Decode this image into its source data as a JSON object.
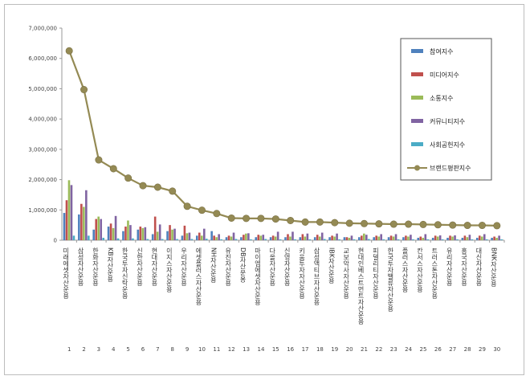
{
  "chart_data": {
    "type": "bar",
    "title": "",
    "xlabel": "",
    "ylabel": "",
    "ylim": [
      0,
      7000000
    ],
    "yticks": [
      "0",
      "1,000,000",
      "2,000,000",
      "3,000,000",
      "4,000,000",
      "5,000,000",
      "6,000,000",
      "7,000,000"
    ],
    "grid": false,
    "legend_position": "top-right",
    "categories": [
      "미래에셋자산운용",
      "삼성자산운용",
      "한화자산운용",
      "KB자산운용",
      "한국투자신탁운용",
      "신한자산운용",
      "현대자산운용",
      "이지스자산운용",
      "우리자산운용",
      "에셋플러스자산운용",
      "NH자산운용",
      "유진자산운용",
      "DB자산운용",
      "마이엠에셋자산운용",
      "다올자산운용",
      "신영자산운용",
      "키움투자자산운용",
      "삼성액티브자산운용",
      "IBK자산운용",
      "교보악사자산운용",
      "현대인베스트먼트자산운용",
      "피델리티자산운용",
      "한국투자밸류자산운용",
      "플러스자산운용",
      "칸서스자산운용",
      "트러스톤자산운용",
      "유리자산운용",
      "흥국자산운용",
      "대신자산운용",
      "BNK자산운용"
    ],
    "ranks": [
      "1",
      "2",
      "3",
      "4",
      "5",
      "6",
      "7",
      "8",
      "9",
      "10",
      "11",
      "12",
      "13",
      "14",
      "15",
      "16",
      "17",
      "18",
      "19",
      "20",
      "21",
      "22",
      "23",
      "24",
      "25",
      "26",
      "27",
      "28",
      "29",
      "30"
    ],
    "series": [
      {
        "name": "참여지수",
        "color": "#4f81bd",
        "kind": "bar",
        "values": [
          900000,
          850000,
          350000,
          450000,
          300000,
          350000,
          200000,
          300000,
          150000,
          150000,
          300000,
          100000,
          100000,
          100000,
          100000,
          100000,
          100000,
          100000,
          100000,
          100000,
          100000,
          100000,
          100000,
          100000,
          80000,
          80000,
          80000,
          80000,
          80000,
          80000
        ]
      },
      {
        "name": "미디어지수",
        "color": "#c0504d",
        "kind": "bar",
        "values": [
          1320000,
          1200000,
          700000,
          550000,
          450000,
          450000,
          780000,
          500000,
          480000,
          250000,
          150000,
          150000,
          180000,
          180000,
          150000,
          200000,
          200000,
          180000,
          150000,
          100000,
          150000,
          150000,
          150000,
          150000,
          120000,
          150000,
          150000,
          150000,
          150000,
          120000
        ]
      },
      {
        "name": "소통지수",
        "color": "#9bbb59",
        "kind": "bar",
        "values": [
          1980000,
          1100000,
          780000,
          400000,
          650000,
          400000,
          280000,
          350000,
          230000,
          150000,
          100000,
          120000,
          220000,
          150000,
          120000,
          120000,
          120000,
          120000,
          120000,
          80000,
          220000,
          120000,
          120000,
          120000,
          80000,
          120000,
          120000,
          100000,
          120000,
          80000
        ]
      },
      {
        "name": "커뮤니티지수",
        "color": "#8064a2",
        "kind": "bar",
        "values": [
          1820000,
          1650000,
          700000,
          800000,
          500000,
          430000,
          520000,
          380000,
          250000,
          380000,
          200000,
          250000,
          230000,
          180000,
          280000,
          280000,
          220000,
          250000,
          220000,
          150000,
          180000,
          200000,
          200000,
          180000,
          200000,
          160000,
          160000,
          180000,
          200000,
          150000
        ]
      },
      {
        "name": "사회공헌지수",
        "color": "#4bacc6",
        "kind": "bar",
        "values": [
          150000,
          150000,
          80000,
          60000,
          60000,
          40000,
          40000,
          40000,
          40000,
          50000,
          30000,
          40000,
          30000,
          40000,
          30000,
          30000,
          30000,
          40000,
          30000,
          30000,
          40000,
          30000,
          30000,
          30000,
          30000,
          30000,
          30000,
          30000,
          30000,
          30000
        ]
      },
      {
        "name": "브랜드평판지수",
        "color": "#948a54",
        "kind": "line",
        "values": [
          6250000,
          4970000,
          2650000,
          2360000,
          2050000,
          1800000,
          1750000,
          1620000,
          1120000,
          990000,
          880000,
          730000,
          720000,
          720000,
          700000,
          650000,
          600000,
          600000,
          580000,
          560000,
          550000,
          540000,
          530000,
          530000,
          520000,
          510000,
          500000,
          490000,
          490000,
          480000
        ]
      }
    ]
  }
}
